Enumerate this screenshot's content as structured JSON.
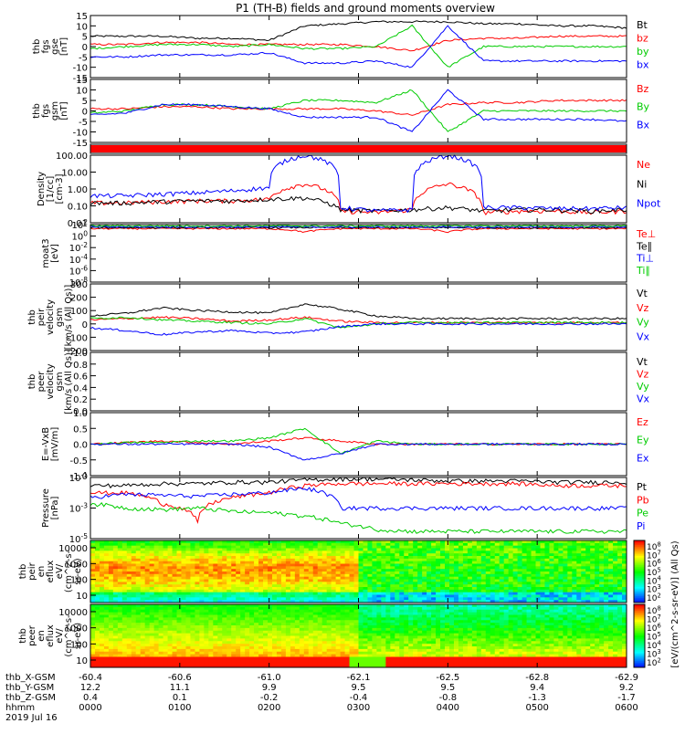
{
  "title": "P1 (TH-B) fields and ground moments overview",
  "footer": {
    "rows": [
      {
        "label": "thb_X-GSM",
        "values": [
          "-60.4",
          "-60.6",
          "-61.0",
          "-62.1",
          "-62.5",
          "-62.8",
          "-62.9"
        ]
      },
      {
        "label": "thb_Y-GSM",
        "values": [
          "12.2",
          "11.1",
          "9.9",
          "9.5",
          "9.5",
          "9.4",
          "9.2"
        ]
      },
      {
        "label": "thb_Z-GSM",
        "values": [
          "0.4",
          "0.1",
          "-0.2",
          "-0.4",
          "-0.8",
          "-1.3",
          "-1.7"
        ]
      },
      {
        "label": "hhmm",
        "values": [
          "0000",
          "0100",
          "0200",
          "0300",
          "0400",
          "0500",
          "0600"
        ]
      }
    ],
    "date": "2019 Jul 16"
  },
  "colorbars": {
    "label": "[eV/(cm^2-s-sr-eV)] (All Qs)",
    "ion_ticks": [
      "10^8",
      "10^7",
      "10^6",
      "10^5",
      "10^4",
      "10^3",
      "10^2"
    ],
    "electron_ticks": [
      "10^8",
      "10^7",
      "10^6",
      "10^5",
      "10^4",
      "10^3",
      "10^2"
    ]
  },
  "chart_data": [
    {
      "panel": "fgs",
      "type": "line",
      "ylabel": [
        "thb",
        "fgs",
        "gse",
        "[nT]"
      ],
      "yticks": [
        "15",
        "10",
        "5",
        "0",
        "-5",
        "-10",
        "-15"
      ],
      "ylim": [
        -15,
        15
      ],
      "series": [
        {
          "name": "Bt",
          "color": "#000000",
          "values": [
            5,
            5,
            5,
            4,
            4,
            3,
            10,
            11,
            12,
            12,
            12,
            11,
            11,
            10,
            10,
            9
          ]
        },
        {
          "name": "bz",
          "color": "#ff0000",
          "values": [
            1,
            1,
            2,
            2,
            1,
            1,
            1,
            1,
            0,
            -2,
            3,
            4,
            4,
            5,
            5,
            5
          ]
        },
        {
          "name": "by",
          "color": "#00cc00",
          "values": [
            -1,
            0,
            1,
            1,
            0,
            1,
            -1,
            -1,
            0,
            10,
            -10,
            0,
            0,
            0,
            0,
            0
          ]
        },
        {
          "name": "bx",
          "color": "#0000ff",
          "values": [
            -5,
            -5,
            -4,
            -4,
            -4,
            -3,
            -8,
            -8,
            -7,
            -10,
            10,
            -7,
            -7,
            -7,
            -7,
            -7
          ]
        }
      ]
    },
    {
      "panel": "fgs_gsm",
      "type": "line",
      "ylabel": [
        "thb",
        "fgs",
        "gsm",
        "[nT]"
      ],
      "yticks": [
        "15",
        "10",
        "5",
        "0",
        "-5",
        "-10",
        "-15"
      ],
      "ylim": [
        -15,
        15
      ],
      "series": [
        {
          "name": "Bz",
          "color": "#ff0000",
          "values": [
            1,
            1,
            2,
            2,
            1,
            1,
            1,
            1,
            0,
            -2,
            3,
            4,
            4,
            5,
            5,
            5
          ]
        },
        {
          "name": "By",
          "color": "#00cc00",
          "values": [
            -1,
            0,
            3,
            3,
            2,
            1,
            5,
            5,
            4,
            10,
            -10,
            0,
            0,
            0,
            0,
            0
          ]
        },
        {
          "name": "Bx",
          "color": "#0000ff",
          "values": [
            -2,
            -1,
            3,
            3,
            2,
            1,
            -3,
            -3,
            -3,
            -10,
            10,
            -4,
            -4,
            -4,
            -4,
            -5
          ]
        }
      ]
    },
    {
      "panel": "density",
      "type": "line",
      "log": true,
      "ylabel": [
        "Density",
        "[1/cc]",
        "[cm-3]"
      ],
      "yticks": [
        "100.00",
        "10.00",
        "1.00",
        "0.10",
        "0.01"
      ],
      "ylim": [
        0.01,
        100
      ],
      "series": [
        {
          "name": "Ne",
          "color": "#ff0000",
          "values": [
            0.15,
            0.15,
            0.18,
            0.2,
            0.2,
            0.25,
            2,
            0.05,
            0.04,
            0.06,
            2,
            0.04,
            0.05,
            0.05,
            0.04,
            0.05
          ]
        },
        {
          "name": "Ni",
          "color": "#000000",
          "values": [
            0.15,
            0.15,
            0.18,
            0.2,
            0.2,
            0.25,
            0.3,
            0.06,
            0.05,
            0.06,
            0.08,
            0.05,
            0.06,
            0.06,
            0.05,
            0.06
          ]
        },
        {
          "name": "Npot",
          "color": "#0000ff",
          "values": [
            0.4,
            0.4,
            0.5,
            0.6,
            0.8,
            1.2,
            100,
            0.08,
            0.05,
            0.06,
            100,
            0.08,
            0.08,
            0.07,
            0.07,
            0.08
          ]
        }
      ]
    },
    {
      "panel": "moat3",
      "type": "line",
      "log": true,
      "ylabel": [
        "moat3",
        "[eV]"
      ],
      "yticks": [
        "10^2",
        "10^0",
        "10^-2",
        "10^-4",
        "10^-6",
        "10^-8"
      ],
      "ylim": [
        1e-08,
        100
      ],
      "series": [
        {
          "name": "Te⊥",
          "color": "#ff0000",
          "values": [
            20,
            20,
            20,
            20,
            20,
            20,
            5,
            20,
            20,
            20,
            5,
            20,
            20,
            20,
            20,
            20
          ]
        },
        {
          "name": "Te∥",
          "color": "#000000",
          "values": [
            30,
            30,
            30,
            30,
            30,
            30,
            30,
            30,
            30,
            30,
            30,
            30,
            30,
            30,
            30,
            30
          ]
        },
        {
          "name": "Ti⊥",
          "color": "#0000ff",
          "values": [
            40,
            40,
            40,
            40,
            40,
            40,
            40,
            40,
            40,
            40,
            40,
            40,
            40,
            40,
            40,
            40
          ]
        },
        {
          "name": "Ti∥",
          "color": "#00cc00",
          "values": [
            60,
            60,
            60,
            60,
            60,
            60,
            60,
            60,
            60,
            60,
            60,
            60,
            60,
            60,
            60,
            60
          ]
        }
      ]
    },
    {
      "panel": "peir_velocity",
      "type": "line",
      "ylabel": [
        "thb",
        "peir",
        "velocity",
        "gsm",
        "[km/s (All Qs)]"
      ],
      "yticks": [
        "300",
        "200",
        "100",
        "0",
        "-100",
        "-200"
      ],
      "ylim": [
        -200,
        300
      ],
      "series": [
        {
          "name": "Vt",
          "color": "#000000",
          "values": [
            60,
            80,
            120,
            100,
            90,
            80,
            150,
            110,
            60,
            40,
            40,
            40,
            40,
            40,
            40,
            40
          ]
        },
        {
          "name": "Vz",
          "color": "#ff0000",
          "values": [
            30,
            40,
            50,
            40,
            20,
            30,
            50,
            20,
            10,
            10,
            10,
            10,
            10,
            10,
            10,
            10
          ]
        },
        {
          "name": "Vy",
          "color": "#00cc00",
          "values": [
            40,
            50,
            30,
            20,
            10,
            0,
            40,
            -30,
            0,
            10,
            10,
            10,
            10,
            10,
            10,
            10
          ]
        },
        {
          "name": "Vx",
          "color": "#0000ff",
          "values": [
            -30,
            -50,
            -80,
            -60,
            -50,
            -70,
            -60,
            -20,
            0,
            0,
            0,
            0,
            0,
            0,
            0,
            0
          ]
        }
      ]
    },
    {
      "panel": "peer_velocity",
      "type": "line",
      "ylabel": [
        "thb",
        "peer",
        "velocity",
        "gsm",
        "[km/s (All Qs)]"
      ],
      "yticks": [
        "1.0",
        "0.8",
        "0.6",
        "0.4",
        "0.2",
        "0.0"
      ],
      "ylim": [
        0,
        1
      ],
      "series": [
        {
          "name": "Vt",
          "color": "#000000",
          "values": []
        },
        {
          "name": "Vz",
          "color": "#ff0000",
          "values": []
        },
        {
          "name": "Vy",
          "color": "#00cc00",
          "values": []
        },
        {
          "name": "Vx",
          "color": "#0000ff",
          "values": []
        }
      ]
    },
    {
      "panel": "efield",
      "type": "line",
      "ylabel": [
        "E=-VxB",
        "[mV/m]"
      ],
      "yticks": [
        "1.0",
        "0.5",
        "0.0",
        "-0.5",
        "-1.0"
      ],
      "ylim": [
        -1,
        1
      ],
      "series": [
        {
          "name": "Ez",
          "color": "#ff0000",
          "values": [
            0,
            0.05,
            0.1,
            0.05,
            0,
            0.1,
            0.2,
            0.1,
            0,
            0,
            0,
            0,
            0,
            0,
            0,
            0
          ]
        },
        {
          "name": "Ey",
          "color": "#00cc00",
          "values": [
            0,
            0.05,
            0.05,
            0.1,
            0.1,
            0.2,
            0.5,
            -0.3,
            0.1,
            0,
            0,
            0,
            0,
            0,
            0,
            0
          ]
        },
        {
          "name": "Ex",
          "color": "#0000ff",
          "values": [
            0,
            0,
            0,
            0,
            0,
            -0.1,
            -0.5,
            -0.3,
            0,
            0,
            0,
            0,
            0,
            0,
            0,
            0
          ]
        }
      ]
    },
    {
      "panel": "pressure",
      "type": "line",
      "log": true,
      "ylabel": [
        "Pressure",
        "[nPa]"
      ],
      "yticks": [
        "10^-1",
        "10^-3",
        "10^-5"
      ],
      "ylim": [
        1e-05,
        0.1
      ],
      "series": [
        {
          "name": "Pt",
          "color": "#000000",
          "values": [
            0.03,
            0.03,
            0.04,
            0.04,
            0.05,
            0.05,
            0.07,
            0.08,
            0.08,
            0.07,
            0.06,
            0.06,
            0.06,
            0.05,
            0.05,
            0.05
          ]
        },
        {
          "name": "Pb",
          "color": "#ff0000",
          "values": [
            0.01,
            0.01,
            0.002,
            0.0001,
            0.005,
            0.01,
            0.03,
            0.04,
            0.04,
            0.04,
            0.04,
            0.04,
            0.04,
            0.03,
            0.03,
            0.03
          ]
        },
        {
          "name": "Pe",
          "color": "#00cc00",
          "values": [
            0.002,
            0.001,
            0.0008,
            0.001,
            0.0006,
            0.0005,
            0.0003,
            0.0001,
            4e-05,
            3e-05,
            3e-05,
            3e-05,
            3e-05,
            3e-05,
            3e-05,
            3e-05
          ]
        },
        {
          "name": "Pi",
          "color": "#0000ff",
          "values": [
            0.005,
            0.008,
            0.007,
            0.006,
            0.008,
            0.01,
            0.02,
            0.001,
            0.001,
            0.001,
            0.001,
            0.001,
            0.001,
            0.001,
            0.001,
            0.001
          ]
        }
      ]
    },
    {
      "panel": "peir_eflux",
      "type": "heatmap",
      "ylabel": [
        "thb",
        "peir",
        "en",
        "eflux",
        "eV/",
        "(cm^2-s-",
        "sr-eV)"
      ],
      "yticks": [
        "10000",
        "1000",
        "100",
        "10"
      ]
    },
    {
      "panel": "peer_eflux",
      "type": "heatmap",
      "ylabel": [
        "thb",
        "peer",
        "en",
        "eflux",
        "eV/",
        "(cm^2-s-",
        "sr-eV)"
      ],
      "yticks": [
        "10000",
        "1000",
        "100",
        "10"
      ]
    }
  ]
}
